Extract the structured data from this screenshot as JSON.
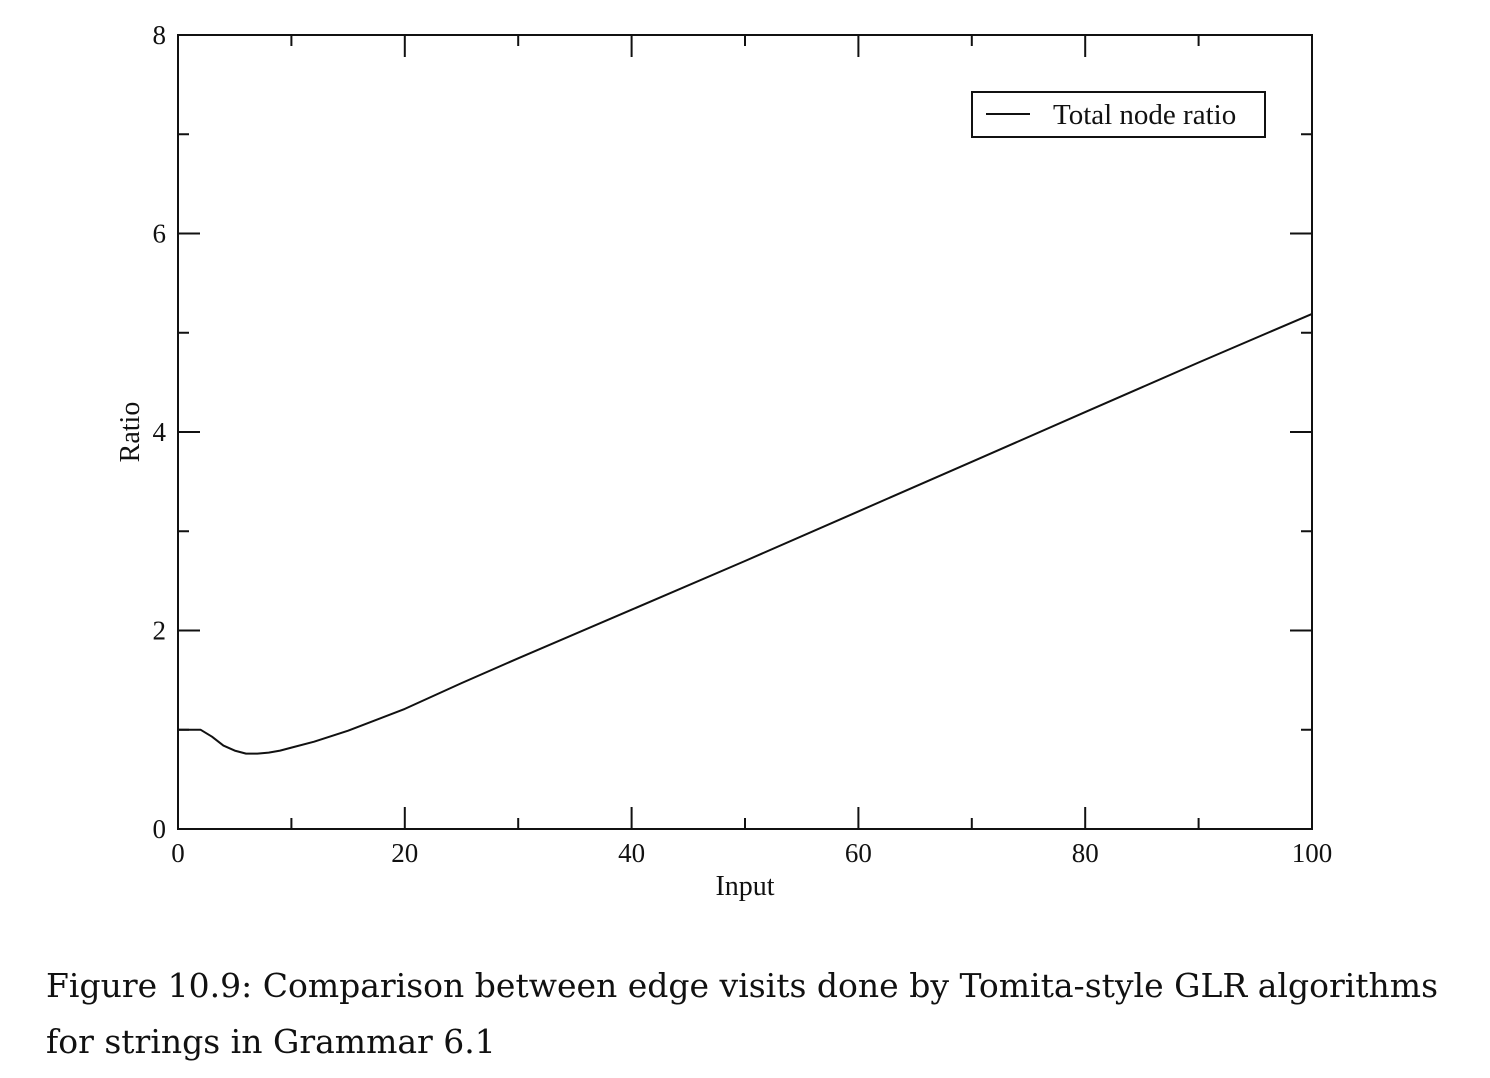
{
  "chart_data": {
    "type": "line",
    "title": "",
    "xlabel": "Input",
    "ylabel": "Ratio",
    "xlim": [
      0,
      100
    ],
    "ylim": [
      0,
      8
    ],
    "x_ticks": [
      0,
      20,
      40,
      60,
      80,
      100
    ],
    "y_ticks": [
      0,
      2,
      4,
      6,
      8
    ],
    "x_minor_ticks": [
      10,
      30,
      50,
      70,
      90
    ],
    "y_minor_ticks": [
      1,
      3,
      5,
      7
    ],
    "legend_position": "top-right",
    "grid": false,
    "series": [
      {
        "name": "Total node ratio",
        "color": "#111111",
        "x": [
          0,
          1,
          2,
          3,
          4,
          5,
          6,
          7,
          8,
          9,
          10,
          12,
          15,
          20,
          25,
          30,
          40,
          50,
          60,
          70,
          80,
          90,
          100
        ],
        "y": [
          1.0,
          1.0,
          1.0,
          0.93,
          0.84,
          0.79,
          0.76,
          0.76,
          0.77,
          0.79,
          0.82,
          0.88,
          0.99,
          1.21,
          1.47,
          1.72,
          2.21,
          2.7,
          3.2,
          3.7,
          4.2,
          4.7,
          5.19
        ]
      }
    ]
  },
  "caption": {
    "line1": "Figure 10.9: Comparison between edge visits done by Tomita-style GLR algorithms",
    "line2": "for strings in Grammar 6.1"
  }
}
